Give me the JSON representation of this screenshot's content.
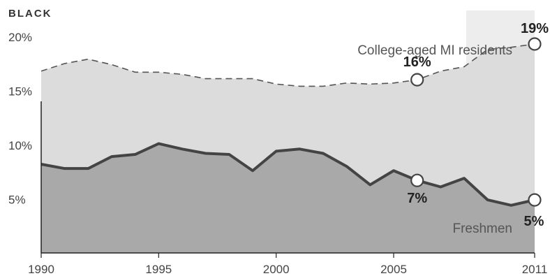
{
  "chart_data": {
    "type": "area",
    "title": "BLACK",
    "x": [
      1990,
      1991,
      1992,
      1993,
      1994,
      1995,
      1996,
      1997,
      1998,
      1999,
      2000,
      2001,
      2002,
      2003,
      2004,
      2005,
      2006,
      2007,
      2008,
      2009,
      2010,
      2011
    ],
    "series": [
      {
        "name": "College-aged MI residents",
        "style": "dashed",
        "values": [
          16.8,
          17.5,
          17.9,
          17.4,
          16.7,
          16.7,
          16.5,
          16.1,
          16.1,
          16.1,
          15.6,
          15.4,
          15.4,
          15.7,
          15.6,
          15.7,
          16.0,
          16.8,
          17.2,
          18.8,
          19.0,
          19.3
        ]
      },
      {
        "name": "Freshmen",
        "style": "solid",
        "values": [
          8.2,
          7.8,
          7.8,
          8.9,
          9.1,
          10.1,
          9.6,
          9.2,
          9.1,
          7.6,
          9.4,
          9.6,
          9.2,
          8.0,
          6.3,
          7.6,
          6.7,
          6.1,
          6.9,
          4.9,
          4.4,
          4.9
        ]
      }
    ],
    "annotations": [
      {
        "series": "College-aged MI residents",
        "x": 2006,
        "label": "16%"
      },
      {
        "series": "College-aged MI residents",
        "x": 2011,
        "label": "19%"
      },
      {
        "series": "Freshmen",
        "x": 2006,
        "label": "7%"
      },
      {
        "series": "Freshmen",
        "x": 2011,
        "label": "5%"
      }
    ],
    "highlight_range": [
      2008,
      2011
    ],
    "xticks": [
      1990,
      1995,
      2000,
      2005,
      2011
    ],
    "xtick_labels": [
      "1990",
      "1995",
      "2000",
      "2005",
      "2011"
    ],
    "yticks": [
      5,
      10,
      15,
      20
    ],
    "ytick_labels": [
      "5%",
      "10%",
      "15%",
      "20%"
    ],
    "xlim": [
      1990,
      2011
    ],
    "ylim": [
      0,
      22
    ],
    "colors": {
      "upper_area": "#dcdcdc",
      "lower_area": "#a9a9a9",
      "highlight_band": "#c8c8c8",
      "freshmen_line": "#444444",
      "residents_line": "#555555",
      "marker_fill": "#ffffff"
    }
  }
}
